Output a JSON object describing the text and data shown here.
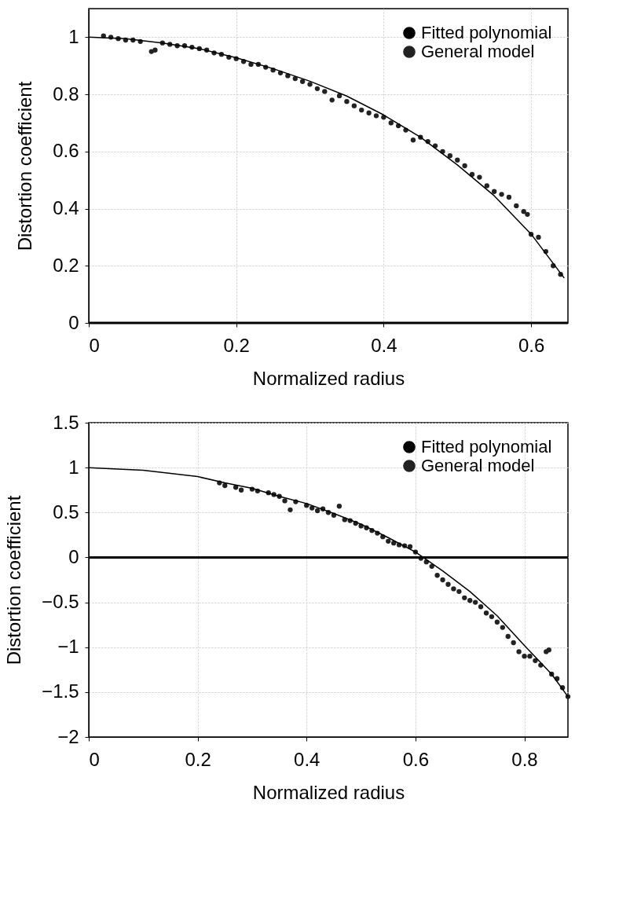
{
  "chart_data": [
    {
      "type": "line",
      "xlabel": "Normalized radius",
      "ylabel": "Distortion coefficient",
      "xlim": [
        0,
        0.65
      ],
      "ylim": [
        0,
        1.1
      ],
      "xticks": [
        0,
        0.2,
        0.4,
        0.6
      ],
      "yticks": [
        0,
        0.2,
        0.4,
        0.6,
        0.8,
        1
      ],
      "grid": true,
      "legend": "top right",
      "ref_lines": [
        {
          "axis": "y",
          "value": 0,
          "color": "#000000"
        }
      ],
      "series": [
        {
          "name": "Fitted polynomial",
          "type": "line",
          "color": "#000000",
          "x": [
            0,
            0.05,
            0.1,
            0.15,
            0.2,
            0.25,
            0.3,
            0.35,
            0.4,
            0.45,
            0.5,
            0.55,
            0.6,
            0.645
          ],
          "values": [
            1.0,
            0.995,
            0.98,
            0.96,
            0.928,
            0.89,
            0.846,
            0.794,
            0.728,
            0.65,
            0.553,
            0.445,
            0.311,
            0.157
          ]
        },
        {
          "name": "General model",
          "type": "scatter",
          "marker": "circle",
          "color": "#222222",
          "x": [
            0.02,
            0.03,
            0.04,
            0.05,
            0.06,
            0.07,
            0.085,
            0.09,
            0.1,
            0.11,
            0.12,
            0.13,
            0.14,
            0.15,
            0.16,
            0.17,
            0.18,
            0.19,
            0.2,
            0.21,
            0.22,
            0.23,
            0.24,
            0.25,
            0.26,
            0.27,
            0.28,
            0.29,
            0.3,
            0.31,
            0.32,
            0.33,
            0.34,
            0.35,
            0.36,
            0.37,
            0.38,
            0.39,
            0.4,
            0.41,
            0.42,
            0.43,
            0.44,
            0.45,
            0.46,
            0.47,
            0.48,
            0.49,
            0.5,
            0.51,
            0.52,
            0.53,
            0.54,
            0.55,
            0.56,
            0.57,
            0.58,
            0.59,
            0.595,
            0.6,
            0.61,
            0.62,
            0.63,
            0.64
          ],
          "values": [
            1.005,
            1.0,
            0.995,
            0.99,
            0.99,
            0.985,
            0.95,
            0.955,
            0.98,
            0.975,
            0.97,
            0.97,
            0.965,
            0.96,
            0.955,
            0.945,
            0.94,
            0.93,
            0.925,
            0.915,
            0.905,
            0.905,
            0.895,
            0.885,
            0.875,
            0.865,
            0.855,
            0.845,
            0.835,
            0.82,
            0.81,
            0.78,
            0.795,
            0.775,
            0.76,
            0.745,
            0.735,
            0.725,
            0.72,
            0.7,
            0.69,
            0.675,
            0.64,
            0.65,
            0.635,
            0.62,
            0.6,
            0.585,
            0.57,
            0.55,
            0.52,
            0.51,
            0.48,
            0.46,
            0.45,
            0.44,
            0.41,
            0.39,
            0.38,
            0.31,
            0.3,
            0.25,
            0.2,
            0.17
          ]
        }
      ]
    },
    {
      "type": "line",
      "xlabel": "Normalized radius",
      "ylabel": "Distortion coefficient",
      "xlim": [
        0,
        0.88
      ],
      "ylim": [
        -2,
        1.5
      ],
      "xticks": [
        0,
        0.2,
        0.4,
        0.6,
        0.8
      ],
      "yticks": [
        -2,
        -1.5,
        -1,
        -0.5,
        0,
        0.5,
        1,
        1.5
      ],
      "grid": true,
      "legend": "top right",
      "ref_lines": [
        {
          "axis": "y",
          "value": 0,
          "color": "#000000"
        }
      ],
      "series": [
        {
          "name": "Fitted polynomial",
          "type": "line",
          "color": "#000000",
          "x": [
            0,
            0.1,
            0.2,
            0.25,
            0.3,
            0.35,
            0.4,
            0.45,
            0.5,
            0.55,
            0.6,
            0.65,
            0.7,
            0.75,
            0.8,
            0.85,
            0.88
          ],
          "values": [
            1.0,
            0.97,
            0.9,
            0.83,
            0.77,
            0.68,
            0.6,
            0.49,
            0.37,
            0.22,
            0.06,
            -0.15,
            -0.38,
            -0.65,
            -0.98,
            -1.3,
            -1.55
          ]
        },
        {
          "name": "General model",
          "type": "scatter",
          "marker": "circle",
          "color": "#222222",
          "x": [
            0.24,
            0.25,
            0.27,
            0.28,
            0.3,
            0.31,
            0.33,
            0.34,
            0.35,
            0.36,
            0.37,
            0.38,
            0.4,
            0.41,
            0.42,
            0.43,
            0.44,
            0.45,
            0.46,
            0.47,
            0.48,
            0.49,
            0.5,
            0.51,
            0.52,
            0.53,
            0.54,
            0.55,
            0.56,
            0.57,
            0.58,
            0.59,
            0.6,
            0.61,
            0.62,
            0.63,
            0.64,
            0.65,
            0.66,
            0.67,
            0.68,
            0.69,
            0.7,
            0.71,
            0.72,
            0.73,
            0.74,
            0.75,
            0.76,
            0.77,
            0.78,
            0.79,
            0.8,
            0.81,
            0.82,
            0.83,
            0.84,
            0.845,
            0.85,
            0.86,
            0.87,
            0.88
          ],
          "values": [
            0.83,
            0.8,
            0.78,
            0.75,
            0.76,
            0.74,
            0.72,
            0.7,
            0.68,
            0.63,
            0.53,
            0.62,
            0.58,
            0.55,
            0.52,
            0.54,
            0.5,
            0.47,
            0.57,
            0.42,
            0.41,
            0.38,
            0.35,
            0.33,
            0.3,
            0.27,
            0.23,
            0.18,
            0.16,
            0.14,
            0.13,
            0.12,
            0.06,
            -0.01,
            -0.05,
            -0.1,
            -0.2,
            -0.25,
            -0.3,
            -0.35,
            -0.38,
            -0.45,
            -0.48,
            -0.5,
            -0.55,
            -0.62,
            -0.66,
            -0.72,
            -0.78,
            -0.88,
            -0.95,
            -1.05,
            -1.1,
            -1.1,
            -1.15,
            -1.2,
            -1.05,
            -1.03,
            -1.3,
            -1.35,
            -1.45,
            -1.55
          ]
        }
      ]
    }
  ]
}
